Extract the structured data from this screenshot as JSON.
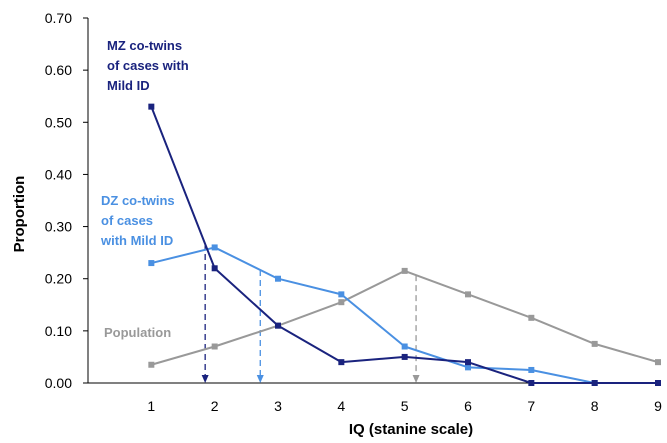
{
  "chart_data": {
    "type": "line",
    "xlabel": "IQ (stanine scale)",
    "ylabel": "Proportion",
    "xlim": [
      0,
      9
    ],
    "ylim": [
      0,
      0.7
    ],
    "x_ticks": [
      "1",
      "2",
      "3",
      "4",
      "5",
      "6",
      "7",
      "8",
      "9"
    ],
    "y_ticks": [
      "0.00",
      "0.10",
      "0.20",
      "0.30",
      "0.40",
      "0.50",
      "0.60",
      "0.70"
    ],
    "grid": false,
    "series": [
      {
        "name": "MZ co-twins of cases with Mild ID",
        "color": "#1a237e",
        "x": [
          1,
          2,
          3,
          4,
          5,
          6,
          7,
          8,
          9
        ],
        "y": [
          0.53,
          0.22,
          0.11,
          0.04,
          0.05,
          0.04,
          0.0,
          0.0,
          0.0
        ],
        "mean_marker": 1.85
      },
      {
        "name": "DZ co-twins of cases with Mild ID",
        "color": "#4a90e2",
        "x": [
          1,
          2,
          3,
          4,
          5,
          6,
          7,
          8,
          9
        ],
        "y": [
          0.23,
          0.26,
          0.2,
          0.17,
          0.07,
          0.03,
          0.025,
          0.0,
          0.0
        ],
        "mean_marker": 2.72
      },
      {
        "name": "Population",
        "color": "#999999",
        "x": [
          1,
          2,
          3,
          4,
          5,
          6,
          7,
          8,
          9
        ],
        "y": [
          0.035,
          0.07,
          0.11,
          0.155,
          0.215,
          0.17,
          0.125,
          0.075,
          0.04
        ],
        "mean_marker": 5.18
      }
    ],
    "annotations": [
      {
        "lines": [
          "MZ co-twins",
          "of cases with",
          "Mild ID"
        ],
        "color": "#1a237e"
      },
      {
        "lines": [
          "DZ co-twins",
          "of cases",
          "with Mild ID"
        ],
        "color": "#4a90e2"
      },
      {
        "lines": [
          "Population"
        ],
        "color": "#999999"
      }
    ]
  }
}
